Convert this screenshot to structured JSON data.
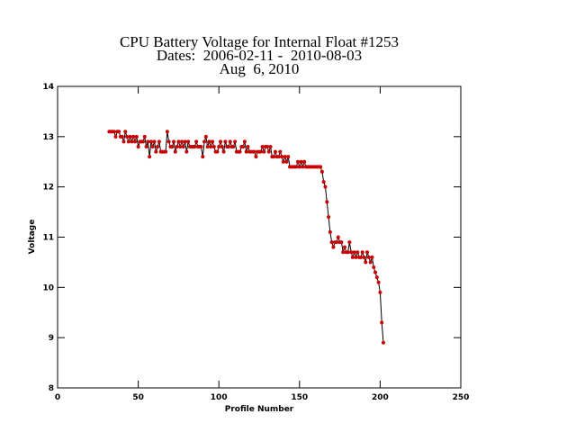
{
  "chart_data": {
    "type": "line",
    "title": [
      "CPU Battery Voltage for Internal Float #1253",
      "Dates:  2006-02-11 -  2010-08-03",
      "Aug  6, 2010"
    ],
    "xlabel": "Profile Number",
    "ylabel": "Voltage",
    "xlim": [
      0,
      250
    ],
    "xticks": [
      0,
      50,
      100,
      150,
      200,
      250
    ],
    "ylim": [
      8,
      14
    ],
    "yticks": [
      8,
      9,
      10,
      11,
      12,
      13,
      14
    ],
    "line_color": "#000000",
    "marker_color": "#cc0000",
    "x": [
      32,
      33,
      34,
      35,
      36,
      37,
      38,
      39,
      40,
      41,
      42,
      43,
      44,
      45,
      46,
      47,
      48,
      49,
      50,
      51,
      52,
      53,
      54,
      55,
      56,
      57,
      58,
      59,
      60,
      61,
      62,
      63,
      64,
      65,
      66,
      67,
      68,
      69,
      70,
      71,
      72,
      73,
      74,
      75,
      76,
      77,
      78,
      79,
      80,
      81,
      82,
      83,
      84,
      85,
      86,
      87,
      88,
      89,
      90,
      91,
      92,
      93,
      94,
      95,
      96,
      97,
      98,
      99,
      100,
      101,
      102,
      103,
      104,
      105,
      106,
      107,
      108,
      109,
      110,
      111,
      112,
      113,
      114,
      115,
      116,
      117,
      118,
      119,
      120,
      121,
      122,
      123,
      124,
      125,
      126,
      127,
      128,
      129,
      130,
      131,
      132,
      133,
      134,
      135,
      136,
      137,
      138,
      139,
      140,
      141,
      142,
      143,
      144,
      145,
      146,
      147,
      148,
      149,
      150,
      151,
      152,
      153,
      154,
      155,
      156,
      157,
      158,
      159,
      160,
      161,
      162,
      163,
      164,
      165,
      166,
      167,
      168,
      169,
      170,
      171,
      172,
      173,
      174,
      175,
      176,
      177,
      178,
      179,
      180,
      181,
      182,
      183,
      184,
      185,
      186,
      187,
      188,
      189,
      190,
      191,
      192,
      193,
      194,
      195,
      196,
      197,
      198,
      199,
      200,
      201,
      202
    ],
    "values": [
      13.1,
      13.1,
      13.1,
      13.1,
      13.0,
      13.1,
      13.1,
      13.0,
      13.0,
      12.9,
      13.1,
      13.0,
      12.9,
      13.0,
      12.9,
      13.0,
      12.9,
      13.0,
      12.8,
      12.9,
      12.9,
      12.9,
      13.0,
      12.8,
      12.9,
      12.6,
      12.9,
      12.8,
      12.9,
      12.7,
      12.8,
      12.9,
      12.7,
      12.7,
      12.7,
      12.7,
      13.1,
      12.9,
      12.8,
      12.8,
      12.9,
      12.7,
      12.8,
      12.9,
      12.8,
      12.9,
      12.8,
      12.9,
      12.7,
      12.9,
      12.8,
      12.8,
      12.8,
      12.8,
      12.9,
      12.8,
      12.8,
      12.8,
      12.6,
      12.9,
      13.0,
      12.8,
      12.9,
      12.8,
      12.9,
      12.8,
      12.7,
      12.7,
      12.8,
      12.9,
      12.8,
      12.7,
      12.9,
      12.8,
      12.8,
      12.9,
      12.8,
      12.8,
      12.9,
      12.7,
      12.7,
      12.7,
      12.8,
      12.8,
      12.9,
      12.7,
      12.8,
      12.7,
      12.7,
      12.7,
      12.7,
      12.6,
      12.7,
      12.7,
      12.7,
      12.8,
      12.7,
      12.8,
      12.8,
      12.7,
      12.8,
      12.6,
      12.6,
      12.7,
      12.6,
      12.6,
      12.7,
      12.6,
      12.5,
      12.6,
      12.5,
      12.6,
      12.4,
      12.4,
      12.4,
      12.4,
      12.4,
      12.5,
      12.4,
      12.5,
      12.4,
      12.5,
      12.4,
      12.4,
      12.4,
      12.4,
      12.4,
      12.4,
      12.4,
      12.4,
      12.4,
      12.4,
      12.3,
      12.1,
      12.0,
      11.7,
      11.4,
      11.1,
      10.9,
      10.8,
      10.9,
      10.9,
      11.0,
      10.9,
      10.9,
      10.7,
      10.8,
      10.7,
      10.7,
      10.9,
      10.7,
      10.6,
      10.7,
      10.6,
      10.7,
      10.6,
      10.6,
      10.7,
      10.6,
      10.5,
      10.7,
      10.6,
      10.5,
      10.6,
      10.4,
      10.3,
      10.2,
      10.1,
      9.9,
      9.3,
      8.9
    ]
  }
}
